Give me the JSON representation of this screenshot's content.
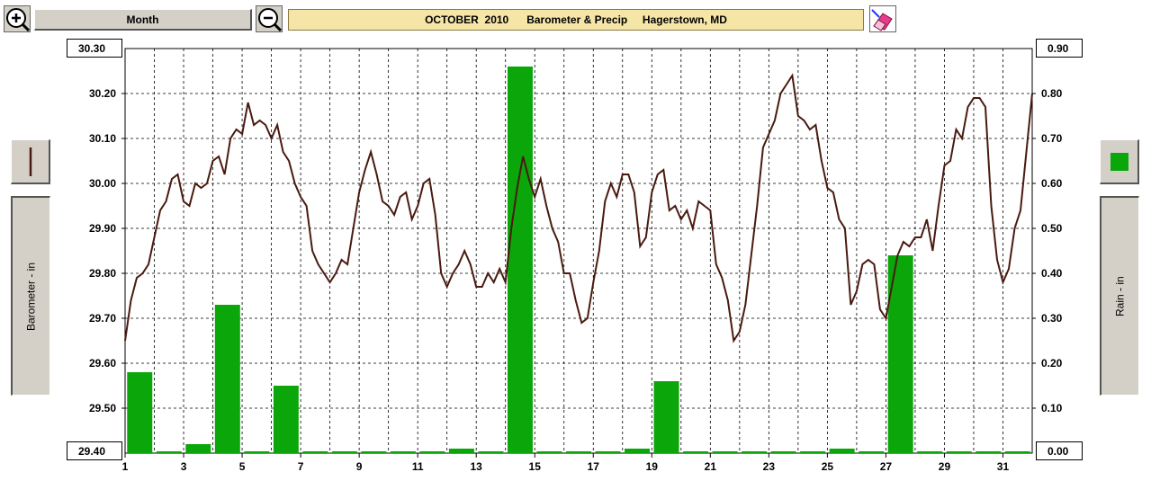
{
  "toolbar": {
    "zoom_in_icon": "magnifier-plus-icon",
    "zoom_out_icon": "magnifier-minus-icon",
    "period_button_label": "Month",
    "title": "OCTOBER  2010      Barometer & Precip     Hagerstown, MD",
    "eraser_icon": "eraser-icon"
  },
  "left_panel": {
    "series_swatch_icon": "line-swatch-icon",
    "axis_button_label": "Barometer - in"
  },
  "right_panel": {
    "series_swatch_icon": "bar-swatch-icon",
    "axis_button_label": "Rain - in"
  },
  "readouts": {
    "left_top": "30.30",
    "left_bottom": "29.40",
    "right_top": "0.90",
    "right_bottom": "0.00"
  },
  "colors": {
    "barometer_line": "#4a1a10",
    "rain_bar": "#0aa60a",
    "grid": "#000000",
    "title_bg": "#f5e6a8"
  },
  "chart_data": {
    "type": "bar+line",
    "title": "OCTOBER  2010      Barometer & Precip     Hagerstown, MD",
    "x_range": [
      1,
      32
    ],
    "x_ticks": [
      "1",
      "3",
      "5",
      "7",
      "9",
      "11",
      "13",
      "15",
      "17",
      "19",
      "21",
      "23",
      "25",
      "27",
      "29",
      "31"
    ],
    "left_axis": {
      "label": "Barometer - in",
      "ylim": [
        29.4,
        30.3
      ],
      "ticks": [
        "30.20",
        "30.10",
        "30.00",
        "29.90",
        "29.80",
        "29.70",
        "29.60",
        "29.50"
      ]
    },
    "right_axis": {
      "label": "Rain - in",
      "ylim": [
        0.0,
        0.9
      ],
      "ticks": [
        "0.80",
        "0.70",
        "0.60",
        "0.50",
        "0.40",
        "0.30",
        "0.20",
        "0.10"
      ]
    },
    "grid": true,
    "rain": {
      "name": "Rain - in",
      "days": [
        1,
        2,
        3,
        4,
        5,
        6,
        7,
        8,
        9,
        10,
        11,
        12,
        13,
        14,
        15,
        16,
        17,
        18,
        19,
        20,
        21,
        22,
        23,
        24,
        25,
        26,
        27,
        28,
        29,
        30,
        31
      ],
      "values": [
        0.18,
        0.0,
        0.02,
        0.33,
        0.0,
        0.15,
        0.0,
        0.0,
        0.0,
        0.0,
        0.0,
        0.01,
        0.0,
        0.86,
        0.0,
        0.0,
        0.0,
        0.01,
        0.16,
        0.0,
        0.0,
        0.0,
        0.0,
        0.0,
        0.01,
        0.0,
        0.44,
        0.0,
        0.0,
        0.0,
        0.0
      ]
    },
    "barometer": {
      "name": "Barometer - in",
      "points": [
        [
          1.0,
          29.65
        ],
        [
          1.2,
          29.74
        ],
        [
          1.4,
          29.79
        ],
        [
          1.6,
          29.8
        ],
        [
          1.8,
          29.82
        ],
        [
          2.0,
          29.88
        ],
        [
          2.2,
          29.94
        ],
        [
          2.4,
          29.96
        ],
        [
          2.6,
          30.01
        ],
        [
          2.8,
          30.02
        ],
        [
          3.0,
          29.96
        ],
        [
          3.2,
          29.95
        ],
        [
          3.4,
          30.0
        ],
        [
          3.6,
          29.99
        ],
        [
          3.8,
          30.0
        ],
        [
          4.0,
          30.05
        ],
        [
          4.2,
          30.06
        ],
        [
          4.4,
          30.02
        ],
        [
          4.6,
          30.1
        ],
        [
          4.8,
          30.12
        ],
        [
          5.0,
          30.11
        ],
        [
          5.2,
          30.18
        ],
        [
          5.4,
          30.13
        ],
        [
          5.6,
          30.14
        ],
        [
          5.8,
          30.13
        ],
        [
          6.0,
          30.1
        ],
        [
          6.2,
          30.13
        ],
        [
          6.4,
          30.07
        ],
        [
          6.6,
          30.05
        ],
        [
          6.8,
          30.0
        ],
        [
          7.0,
          29.97
        ],
        [
          7.2,
          29.95
        ],
        [
          7.4,
          29.85
        ],
        [
          7.6,
          29.82
        ],
        [
          7.8,
          29.8
        ],
        [
          8.0,
          29.78
        ],
        [
          8.2,
          29.8
        ],
        [
          8.4,
          29.83
        ],
        [
          8.6,
          29.82
        ],
        [
          8.8,
          29.9
        ],
        [
          9.0,
          29.98
        ],
        [
          9.2,
          30.03
        ],
        [
          9.4,
          30.07
        ],
        [
          9.6,
          30.02
        ],
        [
          9.8,
          29.96
        ],
        [
          10.0,
          29.95
        ],
        [
          10.2,
          29.93
        ],
        [
          10.4,
          29.97
        ],
        [
          10.6,
          29.98
        ],
        [
          10.8,
          29.92
        ],
        [
          11.0,
          29.95
        ],
        [
          11.2,
          30.0
        ],
        [
          11.4,
          30.01
        ],
        [
          11.6,
          29.93
        ],
        [
          11.8,
          29.8
        ],
        [
          12.0,
          29.77
        ],
        [
          12.2,
          29.8
        ],
        [
          12.4,
          29.82
        ],
        [
          12.6,
          29.85
        ],
        [
          12.8,
          29.82
        ],
        [
          13.0,
          29.77
        ],
        [
          13.2,
          29.77
        ],
        [
          13.4,
          29.8
        ],
        [
          13.6,
          29.78
        ],
        [
          13.8,
          29.81
        ],
        [
          14.0,
          29.78
        ],
        [
          14.2,
          29.9
        ],
        [
          14.4,
          29.99
        ],
        [
          14.6,
          30.06
        ],
        [
          14.8,
          30.01
        ],
        [
          15.0,
          29.97
        ],
        [
          15.2,
          30.01
        ],
        [
          15.4,
          29.95
        ],
        [
          15.6,
          29.9
        ],
        [
          15.8,
          29.87
        ],
        [
          16.0,
          29.8
        ],
        [
          16.2,
          29.8
        ],
        [
          16.4,
          29.74
        ],
        [
          16.6,
          29.69
        ],
        [
          16.8,
          29.7
        ],
        [
          17.0,
          29.78
        ],
        [
          17.2,
          29.85
        ],
        [
          17.4,
          29.96
        ],
        [
          17.6,
          30.0
        ],
        [
          17.8,
          29.97
        ],
        [
          18.0,
          30.02
        ],
        [
          18.2,
          30.02
        ],
        [
          18.4,
          29.98
        ],
        [
          18.6,
          29.86
        ],
        [
          18.8,
          29.88
        ],
        [
          19.0,
          29.98
        ],
        [
          19.2,
          30.02
        ],
        [
          19.4,
          30.03
        ],
        [
          19.6,
          29.94
        ],
        [
          19.8,
          29.95
        ],
        [
          20.0,
          29.92
        ],
        [
          20.2,
          29.94
        ],
        [
          20.4,
          29.9
        ],
        [
          20.6,
          29.96
        ],
        [
          20.8,
          29.95
        ],
        [
          21.0,
          29.94
        ],
        [
          21.2,
          29.82
        ],
        [
          21.4,
          29.79
        ],
        [
          21.6,
          29.74
        ],
        [
          21.8,
          29.65
        ],
        [
          22.0,
          29.67
        ],
        [
          22.2,
          29.73
        ],
        [
          22.4,
          29.84
        ],
        [
          22.6,
          29.95
        ],
        [
          22.8,
          30.08
        ],
        [
          23.0,
          30.11
        ],
        [
          23.2,
          30.14
        ],
        [
          23.4,
          30.2
        ],
        [
          23.6,
          30.22
        ],
        [
          23.8,
          30.24
        ],
        [
          24.0,
          30.15
        ],
        [
          24.2,
          30.14
        ],
        [
          24.4,
          30.12
        ],
        [
          24.6,
          30.13
        ],
        [
          24.8,
          30.05
        ],
        [
          25.0,
          29.99
        ],
        [
          25.2,
          29.98
        ],
        [
          25.4,
          29.92
        ],
        [
          25.6,
          29.9
        ],
        [
          25.8,
          29.73
        ],
        [
          26.0,
          29.76
        ],
        [
          26.2,
          29.82
        ],
        [
          26.4,
          29.83
        ],
        [
          26.6,
          29.82
        ],
        [
          26.8,
          29.72
        ],
        [
          27.0,
          29.7
        ],
        [
          27.2,
          29.77
        ],
        [
          27.4,
          29.84
        ],
        [
          27.6,
          29.87
        ],
        [
          27.8,
          29.86
        ],
        [
          28.0,
          29.88
        ],
        [
          28.2,
          29.88
        ],
        [
          28.4,
          29.92
        ],
        [
          28.6,
          29.85
        ],
        [
          28.8,
          29.95
        ],
        [
          29.0,
          30.04
        ],
        [
          29.2,
          30.05
        ],
        [
          29.4,
          30.12
        ],
        [
          29.6,
          30.1
        ],
        [
          29.8,
          30.17
        ],
        [
          30.0,
          30.19
        ],
        [
          30.2,
          30.19
        ],
        [
          30.4,
          30.17
        ],
        [
          30.6,
          29.95
        ],
        [
          30.8,
          29.83
        ],
        [
          31.0,
          29.78
        ],
        [
          31.2,
          29.81
        ],
        [
          31.4,
          29.9
        ],
        [
          31.6,
          29.94
        ],
        [
          31.8,
          30.07
        ],
        [
          32.0,
          30.2
        ]
      ]
    }
  }
}
